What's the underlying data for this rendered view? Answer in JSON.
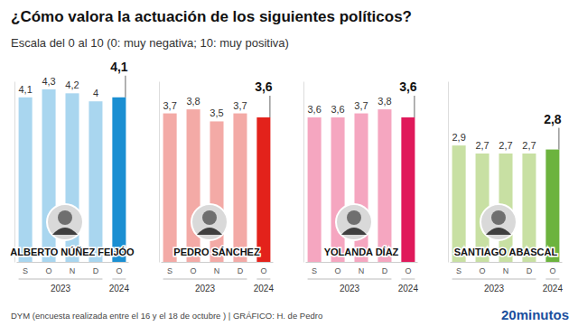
{
  "title": "¿Cómo valora la actuación de los siguientes políticos?",
  "subtitle": "Escala del 0 al 10 (0: muy negativa; 10: muy positiva)",
  "source": "DYM (encuesta realizada entre el 16 y el 18 de octubre )  |  GRÁFICO: H. de Pedro",
  "brand": "20minutos",
  "chart_data": [
    {
      "type": "bar",
      "title": "ALBERTO NÚÑEZ FEIJÓO",
      "categories": [
        "S",
        "O",
        "N",
        "D",
        "O"
      ],
      "values": [
        4.1,
        4.3,
        4.2,
        4,
        4.1
      ],
      "value_labels": [
        "4,1",
        "4,3",
        "4,2",
        "4",
        "4,1"
      ],
      "colors": [
        "#a9d6ef",
        "#a9d6ef",
        "#a9d6ef",
        "#a9d6ef",
        "#1b8fd2"
      ],
      "annotations": [
        "2023",
        "2024"
      ],
      "ylim": [
        0,
        4.5
      ],
      "yticks": [],
      "tick_labels": "x",
      "data_labels": true,
      "grid": false
    },
    {
      "type": "bar",
      "title": "PEDRO SÁNCHEZ",
      "categories": [
        "S",
        "O",
        "N",
        "D",
        "O"
      ],
      "values": [
        3.7,
        3.8,
        3.5,
        3.7,
        3.6
      ],
      "value_labels": [
        "3,7",
        "3,8",
        "3,5",
        "3,7",
        "3,6"
      ],
      "colors": [
        "#f3aaa6",
        "#f3aaa6",
        "#f3aaa6",
        "#f3aaa6",
        "#e3221b"
      ],
      "annotations": [
        "2023",
        "2024"
      ],
      "ylim": [
        0,
        4.5
      ],
      "yticks": [],
      "tick_labels": "x",
      "data_labels": true,
      "grid": false
    },
    {
      "type": "bar",
      "title": "YOLANDA DÍAZ",
      "categories": [
        "S",
        "O",
        "N",
        "D",
        "O"
      ],
      "values": [
        3.6,
        3.6,
        3.7,
        3.8,
        3.6
      ],
      "value_labels": [
        "3,6",
        "3,6",
        "3,7",
        "3,8",
        "3,6"
      ],
      "colors": [
        "#f5a6c0",
        "#f5a6c0",
        "#f5a6c0",
        "#f5a6c0",
        "#e0195b"
      ],
      "annotations": [
        "2023",
        "2024"
      ],
      "ylim": [
        0,
        4.5
      ],
      "yticks": [],
      "tick_labels": "x",
      "data_labels": true,
      "grid": false
    },
    {
      "type": "bar",
      "title": "SANTIAGO ABASCAL",
      "categories": [
        "S",
        "O",
        "N",
        "D",
        "O"
      ],
      "values": [
        2.9,
        2.7,
        2.7,
        2.7,
        2.8
      ],
      "value_labels": [
        "2,9",
        "2,7",
        "2,7",
        "2,7",
        "2,8"
      ],
      "colors": [
        "#c8e0a3",
        "#c8e0a3",
        "#c8e0a3",
        "#c8e0a3",
        "#6cb33e"
      ],
      "annotations": [
        "2023",
        "2024"
      ],
      "ylim": [
        0,
        4.5
      ],
      "yticks": [],
      "tick_labels": "x",
      "data_labels": true,
      "grid": false
    }
  ]
}
